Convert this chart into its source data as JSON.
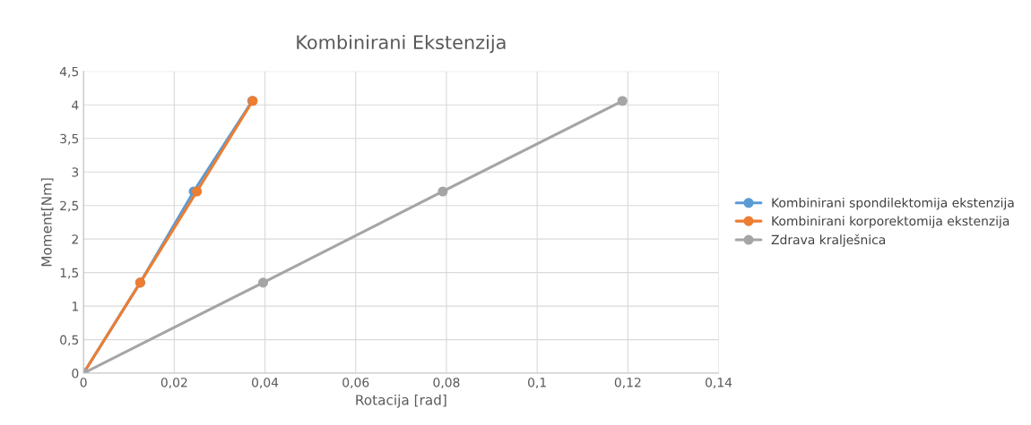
{
  "chart_data": {
    "type": "line",
    "title": "Kombinirani Ekstenzija",
    "xlabel": "Rotacija [rad]",
    "ylabel": "Moment[Nm]",
    "series": [
      {
        "name": "Kombinirani spondilektomija ekstenzija",
        "color": "#5b9bd5",
        "x": [
          0,
          0.0125,
          0.0243,
          0.0372
        ],
        "values": [
          0,
          1.35,
          2.71,
          4.06
        ]
      },
      {
        "name": "Kombinirani korporektomija ekstenzija",
        "color": "#ed7d31",
        "x": [
          0,
          0.0125,
          0.025,
          0.0373
        ],
        "values": [
          0,
          1.35,
          2.71,
          4.06
        ]
      },
      {
        "name": "Zdrava kralješnica",
        "color": "#a5a5a5",
        "x": [
          0,
          0.0396,
          0.0792,
          0.1188
        ],
        "values": [
          0,
          1.35,
          2.71,
          4.06
        ]
      }
    ],
    "xlim": [
      0,
      0.14
    ],
    "xticks": [
      {
        "value": 0,
        "label": "0"
      },
      {
        "value": 0.02,
        "label": "0,02"
      },
      {
        "value": 0.04,
        "label": "0,04"
      },
      {
        "value": 0.06,
        "label": "0,06"
      },
      {
        "value": 0.08,
        "label": "0,08"
      },
      {
        "value": 0.1,
        "label": "0,1"
      },
      {
        "value": 0.12,
        "label": "0,12"
      },
      {
        "value": 0.14,
        "label": "0,14"
      }
    ],
    "ylim": [
      0,
      4.5
    ],
    "yticks": [
      0,
      {
        "value": 0.5,
        "label": "0,5"
      },
      1,
      {
        "value": 1.5,
        "label": "1,5"
      },
      2,
      {
        "value": 2.5,
        "label": "2,5"
      },
      3,
      {
        "value": 3.5,
        "label": "3,5"
      },
      4,
      {
        "value": 4.5,
        "label": "4,5"
      }
    ],
    "grid": true,
    "legend": "right",
    "marker": "circle",
    "line_style": "solid"
  }
}
